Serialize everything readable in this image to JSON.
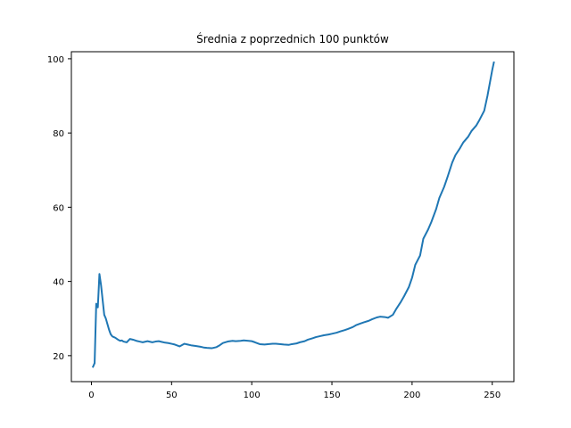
{
  "chart_data": {
    "type": "line",
    "title": "Średnia z poprzednich 100 punktów",
    "xlabel": "",
    "ylabel": "",
    "xlim": [
      -12.5,
      263.5
    ],
    "ylim": [
      13.0,
      101.9
    ],
    "xticks": [
      0,
      50,
      100,
      150,
      200,
      250
    ],
    "yticks": [
      20,
      40,
      60,
      80,
      100
    ],
    "grid": false,
    "legend": "none",
    "series": [
      {
        "color": "#1f77b4",
        "x": [
          1,
          2,
          3,
          4,
          5,
          6,
          7,
          8,
          9,
          10,
          11,
          12,
          13,
          14,
          15,
          16,
          17,
          18,
          19,
          20,
          22,
          24,
          26,
          28,
          30,
          32,
          35,
          38,
          40,
          42,
          44,
          46,
          48,
          50,
          52,
          55,
          58,
          60,
          62,
          65,
          68,
          70,
          72,
          75,
          78,
          80,
          82,
          85,
          88,
          90,
          93,
          95,
          98,
          100,
          102,
          105,
          108,
          110,
          113,
          115,
          118,
          120,
          123,
          125,
          128,
          130,
          133,
          135,
          138,
          140,
          143,
          145,
          148,
          150,
          153,
          155,
          158,
          160,
          163,
          165,
          168,
          170,
          173,
          175,
          178,
          180,
          183,
          185,
          188,
          190,
          193,
          195,
          198,
          200,
          202,
          205,
          207,
          210,
          212,
          215,
          217,
          220,
          222,
          225,
          227,
          230,
          232,
          235,
          237,
          240,
          242,
          245,
          247,
          250,
          251
        ],
        "y": [
          17.0,
          18.0,
          34.0,
          33.0,
          42.0,
          39.0,
          35.0,
          31.0,
          30.0,
          28.5,
          27.0,
          25.8,
          25.2,
          25.0,
          24.8,
          24.5,
          24.2,
          24.0,
          24.1,
          23.8,
          23.6,
          24.5,
          24.3,
          24.0,
          23.8,
          23.6,
          23.9,
          23.6,
          23.8,
          23.9,
          23.7,
          23.5,
          23.4,
          23.2,
          23.0,
          22.5,
          23.2,
          23.0,
          22.8,
          22.6,
          22.4,
          22.2,
          22.1,
          22.0,
          22.3,
          22.8,
          23.4,
          23.8,
          24.0,
          23.9,
          24.0,
          24.1,
          24.0,
          23.9,
          23.6,
          23.1,
          23.0,
          23.1,
          23.2,
          23.2,
          23.1,
          23.0,
          22.9,
          23.1,
          23.3,
          23.6,
          23.9,
          24.3,
          24.7,
          25.0,
          25.3,
          25.5,
          25.7,
          25.9,
          26.2,
          26.5,
          26.9,
          27.2,
          27.7,
          28.2,
          28.7,
          29.0,
          29.4,
          29.8,
          30.3,
          30.5,
          30.4,
          30.2,
          31.0,
          32.5,
          34.5,
          36.0,
          38.5,
          41.0,
          44.5,
          47.0,
          51.5,
          54.0,
          56.0,
          59.5,
          62.5,
          65.5,
          68.0,
          72.0,
          74.0,
          76.0,
          77.5,
          79.0,
          80.5,
          82.0,
          83.5,
          86.0,
          90.0,
          97.0,
          99.0
        ]
      }
    ]
  }
}
